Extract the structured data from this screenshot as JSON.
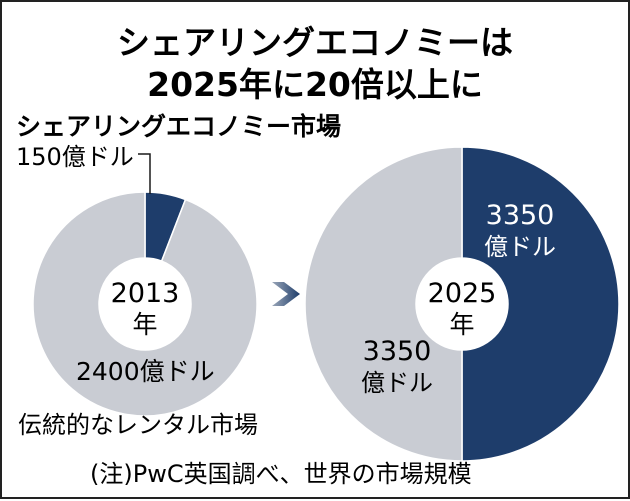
{
  "chart_data": {
    "type": "pie",
    "title": [
      "シェアリングエコノミーは",
      "2025年に20倍以上に"
    ],
    "legend_top": "シェアリングエコノミー市場",
    "legend_bottom": "伝統的なレンタル市場",
    "note": "(注)PwC英国調べ、世界の市場規模",
    "unit": "億ドル",
    "series_names": [
      "シェアリングエコノミー市場",
      "伝統的なレンタル市場"
    ],
    "charts": [
      {
        "year_label": [
          "2013",
          "年"
        ],
        "values": [
          150,
          2400
        ],
        "value_labels": [
          [
            "150億ドル"
          ],
          [
            "2400億ドル"
          ]
        ]
      },
      {
        "year_label": [
          "2025",
          "年"
        ],
        "values": [
          3350,
          3350
        ],
        "value_labels": [
          [
            "3350",
            "億ドル"
          ],
          [
            "3350",
            "億ドル"
          ]
        ]
      }
    ],
    "colors": {
      "sharing": "#1e3d6b",
      "traditional": "#c9ccd3",
      "text": "#1a1a1a",
      "arrow_dark": "#1e3d6b",
      "arrow_light": "#9aa6b8"
    }
  }
}
